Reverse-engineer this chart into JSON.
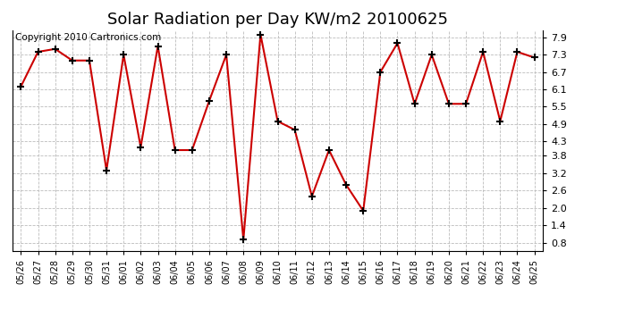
{
  "title": "Solar Radiation per Day KW/m2 20100625",
  "copyright": "Copyright 2010 Cartronics.com",
  "dates": [
    "05/26",
    "05/27",
    "05/28",
    "05/29",
    "05/30",
    "05/31",
    "06/01",
    "06/02",
    "06/03",
    "06/04",
    "06/05",
    "06/06",
    "06/07",
    "06/08",
    "06/09",
    "06/10",
    "06/11",
    "06/12",
    "06/13",
    "06/14",
    "06/15",
    "06/16",
    "06/17",
    "06/18",
    "06/19",
    "06/20",
    "06/21",
    "06/22",
    "06/23",
    "06/24",
    "06/25"
  ],
  "values": [
    6.2,
    7.4,
    7.5,
    7.1,
    7.1,
    3.3,
    7.3,
    4.1,
    7.6,
    4.0,
    4.0,
    5.7,
    7.3,
    0.9,
    8.0,
    5.0,
    4.7,
    2.4,
    4.0,
    2.8,
    1.9,
    6.7,
    7.7,
    5.6,
    7.3,
    5.6,
    5.6,
    7.4,
    5.0,
    7.4,
    7.2
  ],
  "line_color": "#cc0000",
  "marker": "+",
  "marker_color": "#000000",
  "marker_size": 6,
  "marker_linewidth": 1.5,
  "background_color": "#ffffff",
  "grid_color": "#bbbbbb",
  "yticks": [
    0.8,
    1.4,
    2.0,
    2.6,
    3.2,
    3.8,
    4.3,
    4.9,
    5.5,
    6.1,
    6.7,
    7.3,
    7.9
  ],
  "ylim": [
    0.5,
    8.15
  ],
  "title_fontsize": 13,
  "copyright_fontsize": 7.5,
  "tick_fontsize": 8,
  "xtick_fontsize": 7
}
